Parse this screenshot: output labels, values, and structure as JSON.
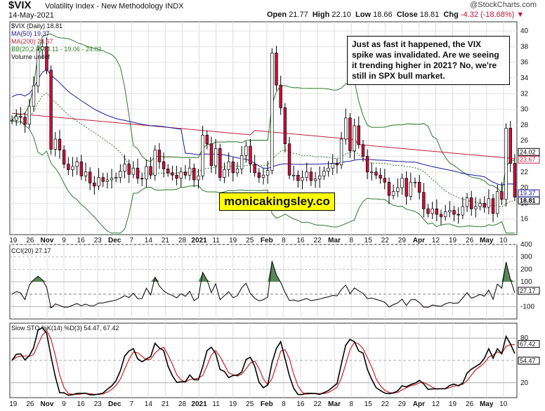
{
  "header": {
    "symbol": "$VIX",
    "description": "Volatility Index - New Methodology  INDX",
    "date": "14-May-2021",
    "watermark": "@StockCharts.com",
    "open_label": "Open",
    "open": "21.77",
    "high_label": "High",
    "high": "22.10",
    "low_label": "Low",
    "low": "18.66",
    "close_label": "Close",
    "close": "18.81",
    "chg_label": "Chg",
    "chg": "-4.32 (-18.68%)"
  },
  "legend": {
    "vix": "$VIX (Daily) 18.81",
    "ma50": "MA(50) 19.37",
    "ma200": "MA(200) 23.67",
    "bb": "BB(20,2.0) 14.11 - 19.06 - 24.02",
    "volume": "Volume undef"
  },
  "annotation": "Just as fast it happened, the VIX spike was invalidated. Are we seeing it trending higher in 2021? No, we're still in SPX bull market.",
  "website": "monicakingsley.co",
  "panels": {
    "cci_title": "CCI(20) 27.17",
    "sto_title": "Slow STO %K(14) %D(3) 54.47, 67.42"
  },
  "colors": {
    "up": "#ffffff",
    "down": "#d0103a",
    "ma50": "#1a1aa0",
    "ma200": "#c0203a",
    "bb": "#2a7a2a",
    "cci_pos": "#4a7a4a",
    "cci_neg": "#8a4a4a",
    "sto_k": "#000000",
    "sto_d": "#d02020"
  },
  "chart_data": [
    {
      "type": "candlestick",
      "name": "$VIX (Daily)",
      "y_axis": {
        "ticks": [
          16,
          18,
          20,
          22,
          24,
          26,
          28,
          30,
          32,
          34,
          36,
          38,
          40
        ],
        "range": [
          14,
          41
        ]
      },
      "x_tick_labels": [
        "19",
        "26",
        "Nov",
        "9",
        "16",
        "23",
        "Dec",
        "7",
        "14",
        "21",
        "28",
        "2021",
        "11",
        "19",
        "25",
        "Feb",
        "8",
        "16",
        "22",
        "Mar",
        "8",
        "15",
        "22",
        "29",
        "Apr",
        "12",
        "19",
        "26",
        "May",
        "10"
      ],
      "last_value_labels": {
        "ma200": "23.67",
        "close": "18.81",
        "ma50": "19.37",
        "bb_upper": "24.02"
      },
      "close": [
        28.6,
        29.1,
        29.0,
        28.1,
        30.4,
        33.0,
        37.6,
        38.0,
        35.0,
        24.9,
        26.2,
        24.8,
        23.0,
        22.3,
        22.7,
        23.3,
        21.5,
        22.0,
        20.6,
        20.2,
        21.3,
        20.8,
        21.0,
        21.2,
        21.3,
        22.1,
        23.0,
        21.7,
        22.5,
        21.2,
        21.1,
        22.7,
        21.6,
        24.8,
        23.3,
        22.4,
        21.9,
        21.6,
        21.2,
        22.0,
        21.6,
        22.5,
        21.0,
        21.5,
        26.7,
        25.6,
        22.8,
        25.0,
        21.3,
        22.3,
        23.3,
        21.9,
        22.4,
        24.1,
        25.3,
        23.0,
        21.9,
        21.3,
        21.6,
        22.2,
        37.2,
        33.1,
        30.2,
        25.6,
        21.6,
        21.6,
        20.9,
        21.3,
        22.0,
        20.9,
        21.1,
        21.5,
        22.1,
        22.5,
        23.1,
        22.9,
        26.2,
        28.9,
        24.7,
        27.9,
        25.5,
        24.0,
        22.0,
        22.0,
        21.6,
        21.2,
        20.7,
        19.0,
        19.5,
        20.0,
        21.2,
        18.9,
        20.7,
        20.7,
        19.4,
        17.3,
        16.7,
        17.3,
        16.6,
        16.3,
        16.9,
        17.1,
        16.6,
        16.5,
        17.6,
        18.7,
        17.3,
        17.6,
        18.0,
        17.5,
        18.6,
        16.7,
        19.5,
        18.5,
        27.6,
        23.1,
        18.8
      ]
    },
    {
      "type": "line",
      "name": "CCI(20)",
      "y_axis": {
        "ticks": [
          -100,
          100,
          200,
          300,
          400
        ]
      },
      "last_value": "27.17"
    },
    {
      "type": "line",
      "name": "Slow STO %K(14) %D(3)",
      "y_axis": {
        "ticks": [
          20,
          80
        ]
      },
      "last_values": {
        "k": "54.47",
        "d": "67.42"
      }
    }
  ]
}
